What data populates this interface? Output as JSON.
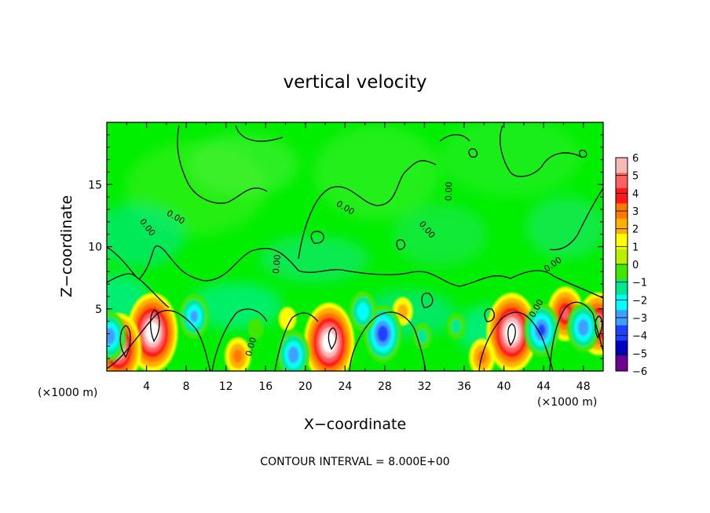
{
  "chart_data": {
    "type": "heatmap",
    "title": "vertical velocity",
    "xlabel": "X−coordinate",
    "ylabel": "Z−coordinate",
    "x_unit_label": "(×1000 m)",
    "y_unit_label": "(×1000 m)",
    "xlim": [
      0,
      50
    ],
    "ylim": [
      0,
      20
    ],
    "x_ticks": [
      4,
      8,
      12,
      16,
      20,
      24,
      28,
      32,
      36,
      40,
      44,
      48
    ],
    "y_ticks": [
      5,
      10,
      15
    ],
    "note": "CONTOUR INTERVAL = 8.000E+00",
    "contour_label": "0.00",
    "colorbar": {
      "ticks": [
        "6",
        "5",
        "4",
        "3",
        "2",
        "1",
        "0",
        "−1",
        "−2",
        "−3",
        "−4",
        "−5",
        "−6"
      ],
      "range": [
        -6,
        6
      ],
      "colors_top_to_bottom": [
        "#f8b8b8",
        "#ff6060",
        "#ff1818",
        "#ff7800",
        "#ffb000",
        "#ffff00",
        "#b8f000",
        "#40e800",
        "#00e890",
        "#00ffff",
        "#40a0ff",
        "#2040ff",
        "#0000c0",
        "#700090"
      ]
    },
    "features": [
      {
        "kind": "updraft",
        "x": 4.6,
        "z": 3.1,
        "peak": 8
      },
      {
        "kind": "updraft",
        "x": 1.2,
        "z": 1.8,
        "peak": 7
      },
      {
        "kind": "updraft",
        "x": 22.4,
        "z": 2.3,
        "peak": 8
      },
      {
        "kind": "updraft",
        "x": 40.8,
        "z": 3.1,
        "peak": 8
      },
      {
        "kind": "updraft",
        "x": 46.2,
        "z": 4.6,
        "peak": 5
      },
      {
        "kind": "updraft",
        "x": 49.5,
        "z": 3.8,
        "peak": 6
      },
      {
        "kind": "updraft",
        "x": 13.2,
        "z": 1.2,
        "peak": 3
      },
      {
        "kind": "updraft",
        "x": 37.8,
        "z": 1.1,
        "peak": 3
      },
      {
        "kind": "updraft",
        "x": 29.8,
        "z": 4.8,
        "peak": 2
      },
      {
        "kind": "updraft",
        "x": 18.2,
        "z": 4.2,
        "peak": 1.5
      },
      {
        "kind": "downdraft",
        "x": 0.3,
        "z": 2.8,
        "peak": -5
      },
      {
        "kind": "downdraft",
        "x": 8.8,
        "z": 4.4,
        "peak": -4.5
      },
      {
        "kind": "downdraft",
        "x": 27.8,
        "z": 3.0,
        "peak": -6
      },
      {
        "kind": "downdraft",
        "x": 18.8,
        "z": 1.3,
        "peak": -5
      },
      {
        "kind": "downdraft",
        "x": 25.8,
        "z": 4.8,
        "peak": -4
      },
      {
        "kind": "downdraft",
        "x": 43.8,
        "z": 3.3,
        "peak": -5.5
      },
      {
        "kind": "downdraft",
        "x": 48.0,
        "z": 3.5,
        "peak": -5
      },
      {
        "kind": "downdraft",
        "x": 31.8,
        "z": 2.8,
        "peak": -2.5
      },
      {
        "kind": "downdraft",
        "x": 35.2,
        "z": 3.6,
        "peak": -2.5
      },
      {
        "kind": "downdraft",
        "x": 15.0,
        "z": 3.4,
        "peak": -2
      }
    ]
  }
}
